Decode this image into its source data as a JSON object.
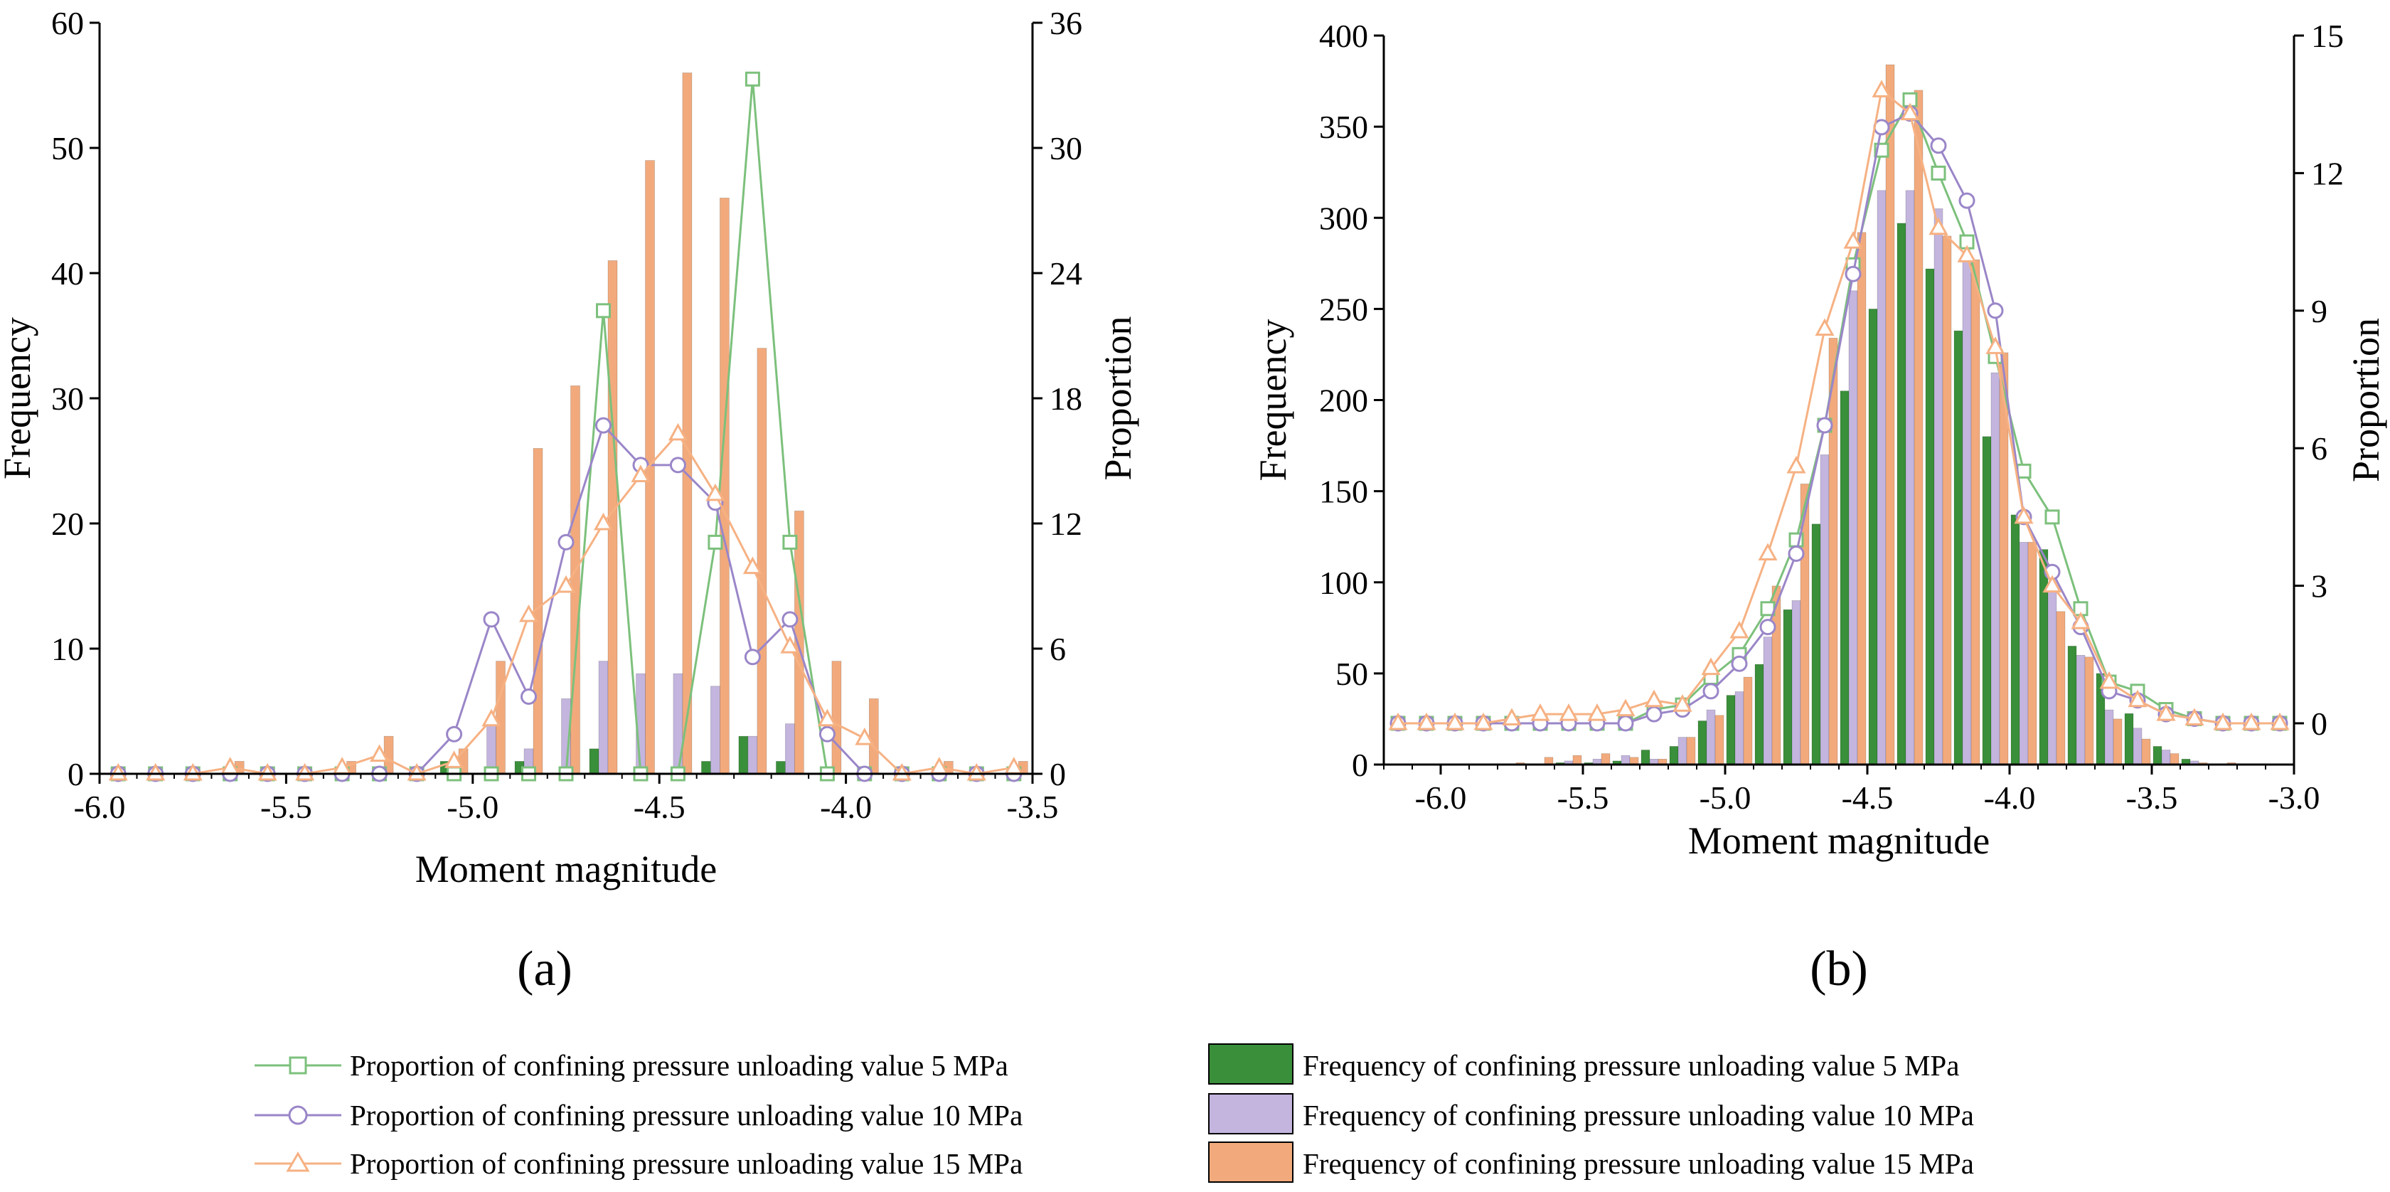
{
  "colors": {
    "p5": "#3a8f3a",
    "p10": "#c3b5de",
    "p15": "#f2aa7c",
    "line5": "#7cc07c",
    "line10": "#9a86c8",
    "line15": "#f6b183"
  },
  "legend": {
    "prop5": "Proportion of confining pressure unloading value 5 MPa",
    "prop10": "Proportion of confining pressure unloading value 10 MPa",
    "prop15": "Proportion of confining pressure unloading value 15 MPa",
    "freq5": "Frequency of confining pressure unloading value 5 MPa",
    "freq10": "Frequency of confining pressure unloading value 10 MPa",
    "freq15": "Frequency of confining pressure unloading value 15 MPa"
  },
  "chart_data": [
    {
      "panel_label": "(a)",
      "type": "bar",
      "xlabel": "Moment magnitude",
      "ylabel": "Frequency",
      "y2label": "Proportion",
      "xlim": [
        -6.0,
        -3.5
      ],
      "ylim": [
        0,
        60
      ],
      "y2lim": [
        0,
        36
      ],
      "xticks": [
        "-6.0",
        "-5.5",
        "-5.0",
        "-4.5",
        "-4.0",
        "-3.5"
      ],
      "yticks": [
        "0",
        "10",
        "20",
        "30",
        "40",
        "50",
        "60"
      ],
      "y2ticks": [
        "0",
        "6",
        "12",
        "18",
        "24",
        "30",
        "36"
      ],
      "bin_width": 0.1,
      "x": [
        -5.95,
        -5.85,
        -5.75,
        -5.65,
        -5.55,
        -5.45,
        -5.35,
        -5.25,
        -5.15,
        -5.05,
        -4.95,
        -4.85,
        -4.75,
        -4.65,
        -4.55,
        -4.45,
        -4.35,
        -4.25,
        -4.15,
        -4.05,
        -3.95,
        -3.85,
        -3.75,
        -3.65,
        -3.55
      ],
      "bar_series": [
        {
          "name": "Frequency of confining pressure unloading value 5 MPa",
          "color_key": "p5",
          "values": [
            0,
            0,
            0,
            0,
            0,
            0,
            0,
            0,
            0,
            1,
            0,
            1,
            0,
            2,
            0,
            0,
            1,
            3,
            1,
            0,
            0,
            0,
            0,
            0,
            0
          ]
        },
        {
          "name": "Frequency of confining pressure unloading value 10 MPa",
          "color_key": "p10",
          "values": [
            0,
            0,
            0,
            0,
            0,
            0,
            0,
            0,
            0,
            1,
            4,
            2,
            6,
            9,
            8,
            8,
            7,
            3,
            4,
            0,
            0,
            0,
            0,
            0,
            0
          ]
        },
        {
          "name": "Frequency of confining pressure unloading value 15 MPa",
          "color_key": "p15",
          "values": [
            0,
            0,
            0,
            1,
            0,
            0,
            1,
            3,
            0,
            2,
            9,
            26,
            31,
            41,
            49,
            56,
            46,
            34,
            21,
            9,
            6,
            0,
            1,
            0,
            1
          ]
        }
      ],
      "line_series": [
        {
          "name": "Proportion of confining pressure unloading value 5 MPa",
          "color_key": "line5",
          "marker": "square",
          "x": [
            -5.95,
            -5.85,
            -5.75,
            -5.65,
            -5.55,
            -5.45,
            -5.35,
            -5.25,
            -5.15,
            -5.05,
            -4.95,
            -4.85,
            -4.75,
            -4.65,
            -4.55,
            -4.45,
            -4.35,
            -4.25,
            -4.15,
            -4.05,
            -3.95,
            -3.85,
            -3.75,
            -3.65,
            -3.55
          ],
          "values": [
            0,
            0,
            0,
            0,
            0,
            0,
            0,
            0,
            0,
            0,
            0,
            0,
            0,
            22.2,
            0,
            0,
            11.1,
            33.3,
            11.1,
            0,
            0,
            0,
            0,
            0,
            0
          ]
        },
        {
          "name": "Proportion of confining pressure unloading value 10 MPa",
          "color_key": "line10",
          "marker": "circle",
          "x": [
            -5.95,
            -5.85,
            -5.75,
            -5.65,
            -5.55,
            -5.45,
            -5.35,
            -5.25,
            -5.15,
            -5.05,
            -4.95,
            -4.85,
            -4.75,
            -4.65,
            -4.55,
            -4.45,
            -4.35,
            -4.25,
            -4.15,
            -4.05,
            -3.95,
            -3.85,
            -3.75,
            -3.65,
            -3.55
          ],
          "values": [
            0,
            0,
            0,
            0,
            0,
            0,
            0,
            0,
            0,
            1.9,
            7.4,
            3.7,
            11.1,
            16.7,
            14.8,
            14.8,
            13.0,
            5.6,
            7.4,
            1.9,
            0,
            0,
            0,
            0,
            0
          ]
        },
        {
          "name": "Proportion of confining pressure unloading value 15 MPa",
          "color_key": "line15",
          "marker": "triangle",
          "x": [
            -5.95,
            -5.85,
            -5.75,
            -5.65,
            -5.55,
            -5.45,
            -5.35,
            -5.25,
            -5.15,
            -5.05,
            -4.95,
            -4.85,
            -4.75,
            -4.65,
            -4.55,
            -4.45,
            -4.35,
            -4.25,
            -4.15,
            -4.05,
            -3.95,
            -3.85,
            -3.75,
            -3.65,
            -3.55
          ],
          "values": [
            0,
            0,
            0,
            0.3,
            0,
            0,
            0.3,
            0.9,
            0,
            0.6,
            2.6,
            7.6,
            9.0,
            12.0,
            14.3,
            16.3,
            13.4,
            9.9,
            6.1,
            2.6,
            1.7,
            0,
            0.3,
            0,
            0.3
          ]
        }
      ]
    },
    {
      "panel_label": "(b)",
      "type": "bar",
      "xlabel": "Moment magnitude",
      "ylabel": "Frequency",
      "y2label": "Proportion",
      "xlim": [
        -6.2,
        -3.0
      ],
      "ylim": [
        0,
        400
      ],
      "y2lim": [
        -0.9,
        15
      ],
      "xticks": [
        "-6.0",
        "-5.5",
        "-5.0",
        "-4.5",
        "-4.0",
        "-3.5",
        "-3.0"
      ],
      "yticks": [
        "0",
        "50",
        "100",
        "150",
        "200",
        "250",
        "300",
        "350",
        "400"
      ],
      "y2ticks": [
        "0",
        "3",
        "6",
        "9",
        "12",
        "15"
      ],
      "bin_width": 0.1,
      "x": [
        -6.15,
        -6.05,
        -5.95,
        -5.85,
        -5.75,
        -5.65,
        -5.55,
        -5.45,
        -5.35,
        -5.25,
        -5.15,
        -5.05,
        -4.95,
        -4.85,
        -4.75,
        -4.65,
        -4.55,
        -4.45,
        -4.35,
        -4.25,
        -4.15,
        -4.05,
        -3.95,
        -3.85,
        -3.75,
        -3.65,
        -3.55,
        -3.45,
        -3.35,
        -3.25,
        -3.15,
        -3.05
      ],
      "bar_series": [
        {
          "name": "Frequency of confining pressure unloading value 5 MPa",
          "color_key": "p5",
          "values": [
            0,
            0,
            0,
            0,
            0,
            0,
            1,
            1,
            2,
            8,
            10,
            24,
            38,
            55,
            85,
            132,
            205,
            250,
            297,
            272,
            238,
            180,
            137,
            118,
            65,
            50,
            28,
            10,
            3,
            0,
            0,
            0
          ]
        },
        {
          "name": "Frequency of confining pressure unloading value 10 MPa",
          "color_key": "p10",
          "values": [
            0,
            0,
            0,
            0,
            0,
            0,
            2,
            3,
            5,
            3,
            15,
            30,
            40,
            70,
            90,
            170,
            260,
            315,
            315,
            305,
            280,
            215,
            122,
            95,
            60,
            30,
            20,
            8,
            2,
            0,
            0,
            0
          ]
        },
        {
          "name": "Frequency of confining pressure unloading value 15 MPa",
          "color_key": "p15",
          "values": [
            0,
            0,
            0,
            0,
            1,
            4,
            5,
            6,
            4,
            3,
            15,
            27,
            48,
            98,
            154,
            234,
            292,
            384,
            370,
            290,
            277,
            226,
            122,
            84,
            59,
            25,
            14,
            6,
            1,
            1,
            0,
            0
          ]
        }
      ],
      "line_series": [
        {
          "name": "Proportion of confining pressure unloading value 5 MPa",
          "color_key": "line5",
          "marker": "square",
          "x": [
            -6.15,
            -6.05,
            -5.95,
            -5.85,
            -5.75,
            -5.65,
            -5.55,
            -5.45,
            -5.35,
            -5.25,
            -5.15,
            -5.05,
            -4.95,
            -4.85,
            -4.75,
            -4.65,
            -4.55,
            -4.45,
            -4.35,
            -4.25,
            -4.15,
            -4.05,
            -3.95,
            -3.85,
            -3.75,
            -3.65,
            -3.55,
            -3.45,
            -3.35,
            -3.25,
            -3.15,
            -3.05
          ],
          "values": [
            0,
            0,
            0,
            0,
            0,
            0,
            0,
            0,
            0,
            0.3,
            0.4,
            1.0,
            1.5,
            2.5,
            4.0,
            6.5,
            10.0,
            12.5,
            13.6,
            12.0,
            10.5,
            8.0,
            5.5,
            4.5,
            2.5,
            0.9,
            0.7,
            0.3,
            0.1,
            0,
            0,
            0
          ]
        },
        {
          "name": "Proportion of confining pressure unloading value 10 MPa",
          "color_key": "line10",
          "marker": "circle",
          "x": [
            -6.15,
            -6.05,
            -5.95,
            -5.85,
            -5.75,
            -5.65,
            -5.55,
            -5.45,
            -5.35,
            -5.25,
            -5.15,
            -5.05,
            -4.95,
            -4.85,
            -4.75,
            -4.65,
            -4.55,
            -4.45,
            -4.35,
            -4.25,
            -4.15,
            -4.05,
            -3.95,
            -3.85,
            -3.75,
            -3.65,
            -3.55,
            -3.45,
            -3.35,
            -3.25,
            -3.15,
            -3.05
          ],
          "values": [
            0,
            0,
            0,
            0,
            0,
            0,
            0,
            0,
            0,
            0.2,
            0.3,
            0.7,
            1.3,
            2.1,
            3.7,
            6.5,
            9.8,
            13.0,
            13.3,
            12.6,
            11.4,
            9.0,
            4.5,
            3.3,
            2.1,
            0.7,
            0.5,
            0.2,
            0.1,
            0,
            0,
            0
          ]
        },
        {
          "name": "Proportion of confining pressure unloading value 15 MPa",
          "color_key": "line15",
          "marker": "triangle",
          "x": [
            -6.15,
            -6.05,
            -5.95,
            -5.85,
            -5.75,
            -5.65,
            -5.55,
            -5.45,
            -5.35,
            -5.25,
            -5.15,
            -5.05,
            -4.95,
            -4.85,
            -4.75,
            -4.65,
            -4.55,
            -4.45,
            -4.35,
            -4.25,
            -4.15,
            -4.05,
            -3.95,
            -3.85,
            -3.75,
            -3.65,
            -3.55,
            -3.45,
            -3.35,
            -3.25,
            -3.15,
            -3.05
          ],
          "values": [
            0,
            0,
            0,
            0,
            0.1,
            0.2,
            0.2,
            0.2,
            0.3,
            0.5,
            0.4,
            1.2,
            2.0,
            3.7,
            5.6,
            8.6,
            10.5,
            13.8,
            13.3,
            10.8,
            10.2,
            8.2,
            4.5,
            3.0,
            2.2,
            0.9,
            0.5,
            0.2,
            0.1,
            0,
            0,
            0
          ]
        }
      ]
    }
  ]
}
